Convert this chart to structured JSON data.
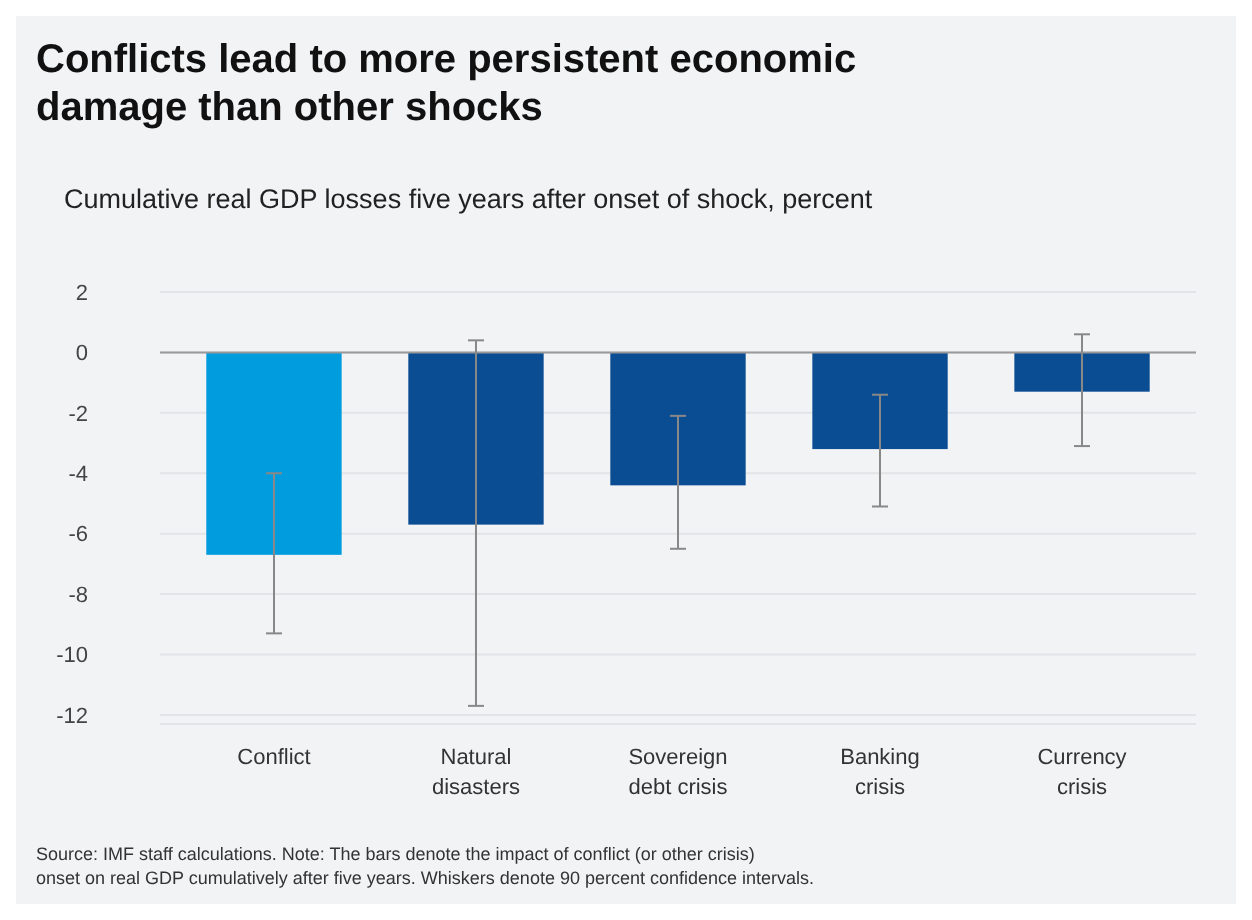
{
  "chart_data": {
    "type": "bar",
    "title": "Conflicts lead to more persistent economic damage than other shocks",
    "subtitle": "Cumulative real GDP losses five years after onset of shock, percent",
    "categories": [
      "Conflict",
      "Natural disasters",
      "Sovereign debt crisis",
      "Banking crisis",
      "Currency crisis"
    ],
    "values": [
      -6.7,
      -5.7,
      -4.4,
      -3.2,
      -1.3
    ],
    "colors": [
      "#009cde",
      "#0b4d93",
      "#0b4d93",
      "#0b4d93",
      "#0b4d93"
    ],
    "errors": [
      [
        -9.3,
        -4.0
      ],
      [
        -11.7,
        0.4
      ],
      [
        -6.5,
        -2.1
      ],
      [
        -5.1,
        -1.4
      ],
      [
        -3.1,
        0.6
      ]
    ],
    "ylim": [
      -12.3,
      2
    ],
    "yticks": [
      2,
      0,
      -2,
      -4,
      -6,
      -8,
      -10,
      -12
    ],
    "grid": "y",
    "annotations": [
      "Source: IMF staff calculations. Note: The bars denote the impact of conflict (or other crisis) onset on real GDP cumulatively after five years. Whiskers denote 90 percent confidence intervals."
    ]
  }
}
